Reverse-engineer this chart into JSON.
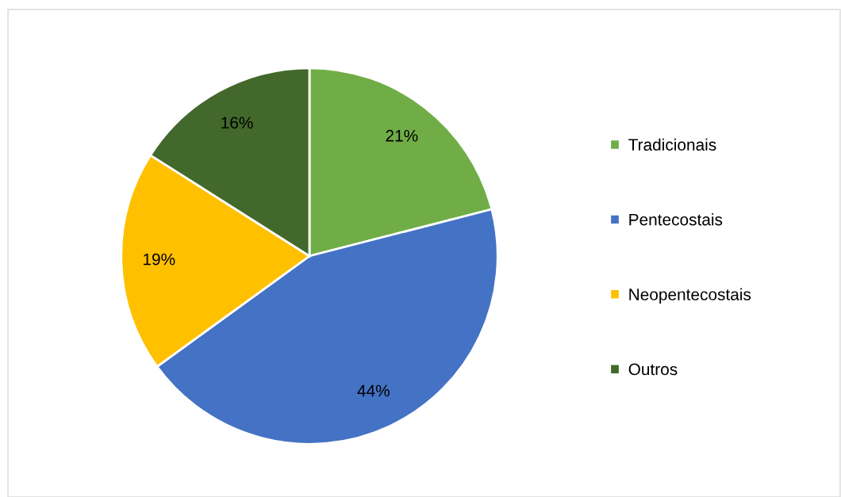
{
  "chart_data": {
    "type": "pie",
    "categories": [
      "Tradicionais",
      "Pentecostais",
      "Neopentecostais",
      "Outros"
    ],
    "values": [
      21,
      44,
      19,
      16
    ],
    "colors": [
      "#70ad47",
      "#4472c4",
      "#ffc000",
      "#43682b"
    ],
    "value_labels": [
      "21%",
      "44%",
      "19%",
      "16%"
    ],
    "legend": "right"
  }
}
